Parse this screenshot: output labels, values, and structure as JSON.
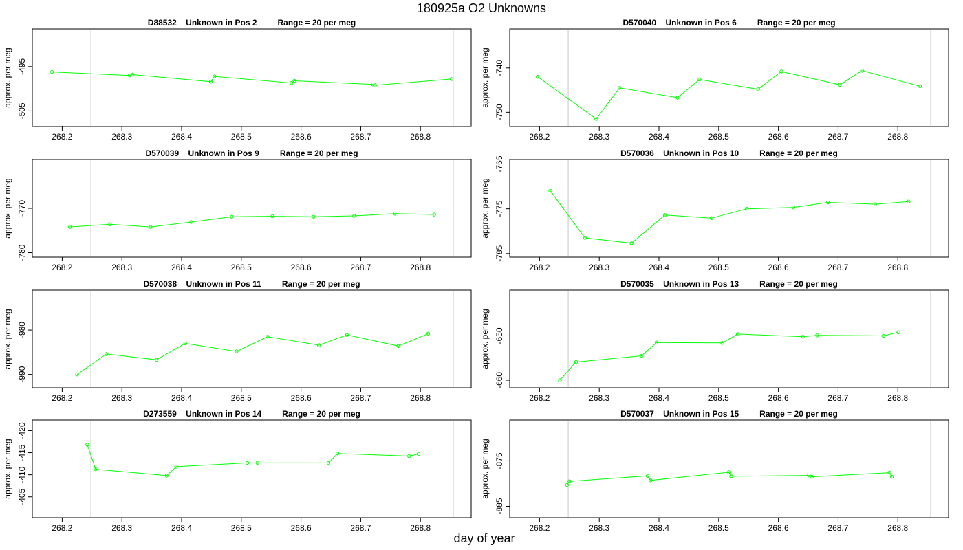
{
  "title": "180925a  O2 Unknowns",
  "xlabel": "day of year",
  "colors": {
    "series": "#00ff00",
    "frame": "#000000",
    "vline": "#c8c8c8"
  },
  "chart_data": [
    {
      "type": "line",
      "panel_title": "D88532    Unknown in Pos 2         Range = 20 per meg",
      "ylabel": "approx. per meg",
      "xlim": [
        268.15,
        268.885
      ],
      "ylim": [
        -508.5,
        -486.5
      ],
      "xticks": [
        268.2,
        268.3,
        268.4,
        268.5,
        268.6,
        268.7,
        268.8
      ],
      "yticks": [
        -495,
        -505
      ],
      "vlines": [
        268.248,
        268.855
      ],
      "x": [
        268.183,
        268.313,
        268.318,
        268.449,
        268.455,
        268.584,
        268.589,
        268.72,
        268.724,
        268.852
      ],
      "y": [
        -496.2,
        -497.0,
        -496.8,
        -498.4,
        -497.2,
        -498.7,
        -498.2,
        -499.0,
        -499.2,
        -497.8
      ]
    },
    {
      "type": "line",
      "panel_title": "D570040    Unknown in Pos 6         Range = 20 per meg",
      "ylabel": "approx. per meg",
      "xlim": [
        268.15,
        268.885
      ],
      "ylim": [
        -753.2,
        -731.2
      ],
      "xticks": [
        268.2,
        268.3,
        268.4,
        268.5,
        268.6,
        268.7,
        268.8
      ],
      "yticks": [
        -740,
        -750
      ],
      "vlines": [
        268.248,
        268.855
      ],
      "x": [
        268.197,
        268.295,
        268.334,
        268.431,
        268.468,
        268.566,
        268.605,
        268.703,
        268.74,
        268.837
      ],
      "y": [
        -742.0,
        -751.5,
        -744.5,
        -746.7,
        -742.6,
        -744.8,
        -740.8,
        -743.8,
        -740.6,
        -744.1
      ]
    },
    {
      "type": "line",
      "panel_title": "D570039    Unknown in Pos 9         Range = 20 per meg",
      "ylabel": "approx. per meg",
      "xlim": [
        268.15,
        268.885
      ],
      "ylim": [
        -781.0,
        -759.0
      ],
      "xticks": [
        268.2,
        268.3,
        268.4,
        268.5,
        268.6,
        268.7,
        268.8
      ],
      "yticks": [
        -770,
        -780
      ],
      "vlines": [
        268.248,
        268.855
      ],
      "x": [
        268.213,
        268.28,
        268.348,
        268.416,
        268.484,
        268.552,
        268.621,
        268.689,
        268.757,
        268.823
      ],
      "y": [
        -774.2,
        -773.6,
        -774.2,
        -773.1,
        -771.9,
        -771.8,
        -771.9,
        -771.7,
        -771.2,
        -771.4
      ]
    },
    {
      "type": "line",
      "panel_title": "D570036    Unknown in Pos 10         Range = 20 per meg",
      "ylabel": "approx. per meg",
      "xlim": [
        268.15,
        268.885
      ],
      "ylim": [
        -785.8,
        -764.0
      ],
      "xticks": [
        268.2,
        268.3,
        268.4,
        268.5,
        268.6,
        268.7,
        268.8
      ],
      "yticks": [
        -765,
        -775,
        -785
      ],
      "vlines": [
        268.248,
        268.855
      ],
      "x": [
        268.218,
        268.276,
        268.354,
        268.41,
        268.488,
        268.547,
        268.625,
        268.683,
        268.762,
        268.818
      ],
      "y": [
        -771.0,
        -781.5,
        -782.7,
        -776.4,
        -777.1,
        -775.0,
        -774.7,
        -773.6,
        -774.0,
        -773.4
      ]
    },
    {
      "type": "line",
      "panel_title": "D570038    Unknown in Pos 11         Range = 20 per meg",
      "ylabel": "approx. per meg",
      "xlim": [
        268.15,
        268.885
      ],
      "ylim": [
        -993.0,
        -971.0
      ],
      "xticks": [
        268.2,
        268.3,
        268.4,
        268.5,
        268.6,
        268.7,
        268.8
      ],
      "yticks": [
        -980,
        -990
      ],
      "vlines": [
        268.248,
        268.855
      ],
      "x": [
        268.225,
        268.274,
        268.358,
        268.406,
        268.492,
        268.544,
        268.63,
        268.677,
        268.763,
        268.813
      ],
      "y": [
        -990.0,
        -985.4,
        -986.7,
        -983.0,
        -984.8,
        -981.5,
        -983.4,
        -981.1,
        -983.6,
        -980.8
      ]
    },
    {
      "type": "line",
      "panel_title": "D570035    Unknown in Pos 13         Range = 20 per meg",
      "ylabel": "approx. per meg",
      "xlim": [
        268.15,
        268.885
      ],
      "ylim": [
        -661.7,
        -639.7
      ],
      "xticks": [
        268.2,
        268.3,
        268.4,
        268.5,
        268.6,
        268.7,
        268.8
      ],
      "yticks": [
        -650,
        -660
      ],
      "vlines": [
        268.248,
        268.855
      ],
      "x": [
        268.234,
        268.261,
        268.371,
        268.396,
        268.506,
        268.532,
        268.641,
        268.665,
        268.776,
        268.801
      ],
      "y": [
        -660.0,
        -655.9,
        -654.5,
        -651.5,
        -651.6,
        -649.6,
        -650.2,
        -649.9,
        -650.0,
        -649.2
      ]
    },
    {
      "type": "line",
      "panel_title": "D273559    Unknown in Pos 14         Range = 20 per meg",
      "ylabel": "approx. per meg",
      "xlim": [
        268.15,
        268.885
      ],
      "ylim": [
        -3.0,
        20.0
      ],
      "xticks": [
        268.2,
        268.3,
        268.4,
        268.5,
        268.6,
        268.7,
        268.8
      ],
      "yticks": [
        -405,
        -410,
        -415,
        -420
      ],
      "ytick_positions": [
        1.9,
        7.1,
        12.3,
        17.5
      ],
      "vlines": [
        268.248,
        268.855
      ],
      "x": [
        268.242,
        268.256,
        268.375,
        268.391,
        268.51,
        268.527,
        268.646,
        268.661,
        268.781,
        268.797
      ],
      "y": [
        14.2,
        8.4,
        6.9,
        9.0,
        9.9,
        9.9,
        9.9,
        12.1,
        11.5,
        12.0
      ]
    },
    {
      "type": "line",
      "panel_title": "D570037    Unknown in Pos 15         Range = 20 per meg",
      "ylabel": "approx. per meg",
      "xlim": [
        268.15,
        268.885
      ],
      "ylim": [
        -887.5,
        -866.0
      ],
      "xticks": [
        268.2,
        268.3,
        268.4,
        268.5,
        268.6,
        268.7,
        268.8
      ],
      "yticks": [
        -875,
        -885
      ],
      "vlines": [
        268.248,
        268.855
      ],
      "x": [
        268.246,
        268.25,
        268.381,
        268.386,
        268.517,
        268.521,
        268.651,
        268.656,
        268.786,
        268.79
      ],
      "y": [
        -880.3,
        -879.5,
        -878.3,
        -879.3,
        -877.5,
        -878.4,
        -878.2,
        -878.5,
        -877.6,
        -878.5
      ]
    }
  ]
}
